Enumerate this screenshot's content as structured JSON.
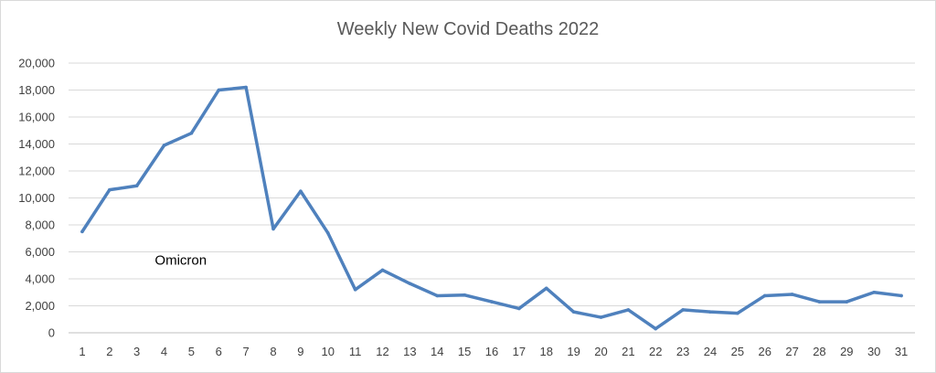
{
  "chart_data": {
    "type": "line",
    "title": "Weekly New Covid Deaths 2022",
    "xlabel": "",
    "ylabel": "",
    "x": [
      1,
      2,
      3,
      4,
      5,
      6,
      7,
      8,
      9,
      10,
      11,
      12,
      13,
      14,
      15,
      16,
      17,
      18,
      19,
      20,
      21,
      22,
      23,
      24,
      25,
      26,
      27,
      28,
      29,
      30,
      31
    ],
    "series": [
      {
        "values": [
          7500,
          10600,
          10900,
          13900,
          14800,
          18000,
          18200,
          7700,
          10500,
          7400,
          3200,
          4650,
          3650,
          2750,
          2800,
          2300,
          1800,
          3300,
          1550,
          1150,
          1700,
          300,
          1700,
          1550,
          1450,
          2750,
          2850,
          2300,
          2300,
          3000,
          2750
        ]
      }
    ],
    "ylim": [
      0,
      20000
    ],
    "yticks": [
      "0",
      "2,000",
      "4,000",
      "6,000",
      "8,000",
      "10,000",
      "12,000",
      "14,000",
      "16,000",
      "18,000",
      "20,000"
    ],
    "xticks": [
      "1",
      "2",
      "3",
      "4",
      "5",
      "6",
      "7",
      "8",
      "9",
      "10",
      "11",
      "12",
      "13",
      "14",
      "15",
      "16",
      "17",
      "18",
      "19",
      "20",
      "21",
      "22",
      "23",
      "24",
      "25",
      "26",
      "27",
      "28",
      "29",
      "30",
      "31"
    ],
    "grid": true,
    "legend": "none",
    "annotations": [
      {
        "text": "Omicron",
        "x": 5,
        "y": 5200
      }
    ],
    "colors": {
      "line": "#4f81bd",
      "grid": "#d9d9d9",
      "axis": "#bfbfbf"
    }
  }
}
